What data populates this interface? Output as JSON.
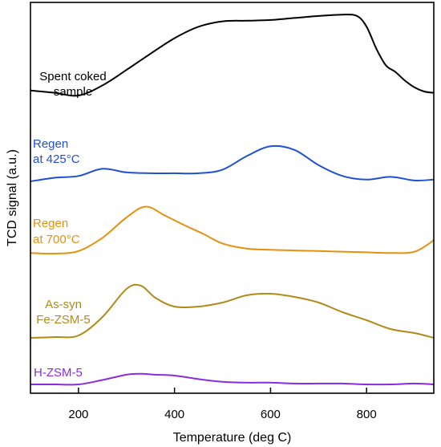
{
  "chart_data": {
    "type": "line",
    "title": "",
    "xlabel": "Temperature (deg C)",
    "ylabel": "TCD signal (a.u.)",
    "xlim": [
      100,
      940
    ],
    "xticks": [
      200,
      400,
      600,
      800
    ],
    "grid": false,
    "y_values_shown": false,
    "series": [
      {
        "label_lines": [
          "Spent coked",
          "sample"
        ],
        "color": "#000000",
        "x": [
          100,
          150,
          200,
          250,
          300,
          350,
          400,
          450,
          500,
          550,
          600,
          650,
          700,
          750,
          780,
          800,
          820,
          840,
          860,
          880,
          900,
          920,
          940
        ],
        "y": [
          0.75,
          0.4,
          0.0,
          1.5,
          3.8,
          6.2,
          8.5,
          10.2,
          11.0,
          11.1,
          11.2,
          11.5,
          11.8,
          12.0,
          11.8,
          10.2,
          7.0,
          4.5,
          3.5,
          2.2,
          1.2,
          0.6,
          0.4
        ]
      },
      {
        "label_lines": [
          "Regen",
          "at 425°C"
        ],
        "color": "#1f4fd6",
        "x": [
          100,
          150,
          200,
          250,
          300,
          350,
          400,
          450,
          500,
          550,
          600,
          650,
          700,
          750,
          800,
          850,
          900,
          940
        ],
        "y": [
          0.0,
          0.4,
          0.6,
          1.4,
          1.0,
          0.9,
          0.9,
          0.9,
          1.3,
          2.8,
          3.9,
          3.5,
          1.8,
          0.6,
          0.2,
          0.5,
          0.1,
          0.2
        ]
      },
      {
        "label_lines": [
          "Regen",
          "at 700°C"
        ],
        "color": "#e8900e",
        "x": [
          100,
          150,
          200,
          250,
          300,
          340,
          380,
          420,
          460,
          500,
          550,
          600,
          650,
          700,
          750,
          800,
          850,
          900,
          940
        ],
        "y": [
          0.1,
          0.0,
          0.4,
          2.5,
          5.7,
          7.4,
          6.0,
          4.5,
          3.1,
          1.6,
          0.8,
          0.6,
          0.5,
          0.4,
          0.3,
          0.2,
          0.1,
          0.3,
          2.1
        ]
      },
      {
        "label_lines": [
          "As-syn",
          "Fe-ZSM-5"
        ],
        "color": "#b08a1a",
        "x": [
          100,
          150,
          200,
          250,
          300,
          330,
          360,
          400,
          450,
          500,
          550,
          600,
          650,
          700,
          750,
          800,
          850,
          900,
          940
        ],
        "y": [
          0.1,
          0.2,
          0.4,
          2.7,
          6.2,
          6.6,
          5.1,
          4.0,
          4.0,
          4.5,
          5.4,
          5.6,
          5.2,
          4.5,
          3.3,
          2.3,
          1.2,
          0.7,
          0.1
        ]
      },
      {
        "label_lines": [
          "H-ZSM-5"
        ],
        "color": "#8a2be2",
        "x": [
          100,
          150,
          200,
          250,
          300,
          330,
          360,
          400,
          450,
          500,
          550,
          600,
          650,
          700,
          750,
          800,
          850,
          900,
          940
        ],
        "y": [
          0.0,
          0.0,
          0.0,
          0.5,
          1.1,
          1.2,
          1.1,
          1.0,
          0.6,
          0.3,
          0.2,
          0.2,
          0.1,
          0.1,
          0.1,
          0.0,
          0.0,
          0.1,
          0.0
        ]
      }
    ]
  }
}
